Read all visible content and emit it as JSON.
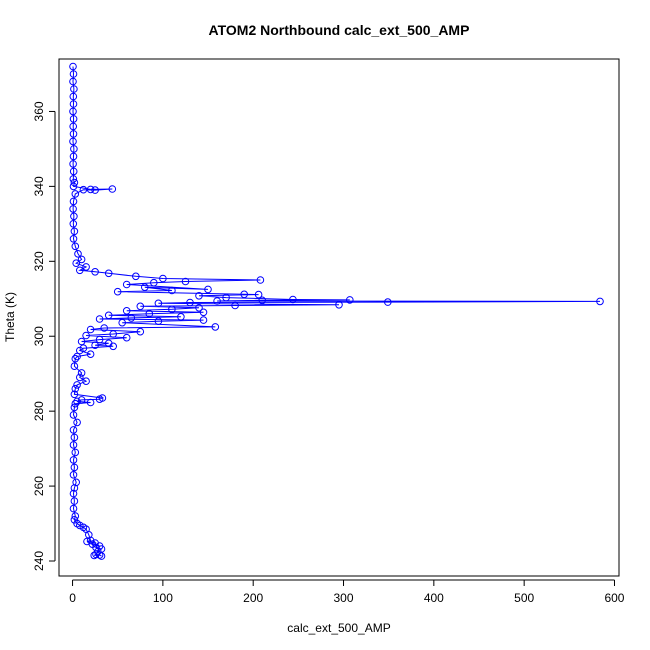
{
  "chart_data": {
    "type": "scatter",
    "title": "ATOM2 Northbound calc_ext_500_AMP",
    "xlabel": "calc_ext_500_AMP",
    "ylabel": "Theta (K)",
    "xlim": [
      -15,
      605
    ],
    "ylim": [
      236,
      374
    ],
    "x_ticks": [
      0,
      100,
      200,
      300,
      400,
      500,
      600
    ],
    "y_ticks": [
      240,
      260,
      280,
      300,
      320,
      340,
      360
    ],
    "grid": false,
    "legend": "none",
    "marker": "open-circle",
    "connect_points": true,
    "series": [
      {
        "color": "#0000ff",
        "points": [
          [
            0.5,
            372
          ],
          [
            1,
            370
          ],
          [
            0.5,
            368
          ],
          [
            1.5,
            366
          ],
          [
            0.8,
            364
          ],
          [
            1,
            362
          ],
          [
            0.5,
            360
          ],
          [
            1.2,
            358
          ],
          [
            0.7,
            356
          ],
          [
            1,
            354
          ],
          [
            0.5,
            352
          ],
          [
            1.5,
            350
          ],
          [
            1,
            348
          ],
          [
            0.6,
            346
          ],
          [
            1.3,
            344
          ],
          [
            0.8,
            342
          ],
          [
            2,
            341
          ],
          [
            1,
            340
          ],
          [
            20,
            339.2
          ],
          [
            44,
            339.3
          ],
          [
            25,
            339
          ],
          [
            12,
            339.1
          ],
          [
            3,
            338
          ],
          [
            1,
            336
          ],
          [
            0.6,
            334
          ],
          [
            1.5,
            332
          ],
          [
            0.8,
            330
          ],
          [
            2,
            328
          ],
          [
            1,
            326
          ],
          [
            3,
            324
          ],
          [
            6,
            322
          ],
          [
            10,
            320.5
          ],
          [
            4,
            319.5
          ],
          [
            15,
            318.5
          ],
          [
            8,
            317.6
          ],
          [
            25,
            317.2
          ],
          [
            40,
            316.8
          ],
          [
            70,
            316
          ],
          [
            100,
            315.4
          ],
          [
            208,
            315
          ],
          [
            125,
            314.6
          ],
          [
            90,
            314.3
          ],
          [
            60,
            313.8
          ],
          [
            150,
            312.5
          ],
          [
            80,
            313.1
          ],
          [
            110,
            312.2
          ],
          [
            50,
            311.9
          ],
          [
            190,
            311.2
          ],
          [
            206,
            311.1
          ],
          [
            140,
            310.8
          ],
          [
            170,
            310.3
          ],
          [
            244,
            309.8
          ],
          [
            307,
            309.7
          ],
          [
            210,
            309.6
          ],
          [
            160,
            309.4
          ],
          [
            584,
            309.3
          ],
          [
            349,
            309.1
          ],
          [
            130,
            309
          ],
          [
            95,
            308.8
          ],
          [
            295,
            308.4
          ],
          [
            180,
            308.2
          ],
          [
            75,
            308
          ],
          [
            140,
            307.6
          ],
          [
            110,
            307.2
          ],
          [
            60,
            306.8
          ],
          [
            145,
            306.4
          ],
          [
            85,
            306
          ],
          [
            40,
            305.6
          ],
          [
            120,
            305.2
          ],
          [
            65,
            304.9
          ],
          [
            30,
            304.6
          ],
          [
            145,
            304.3
          ],
          [
            95,
            304
          ],
          [
            55,
            303.6
          ],
          [
            158,
            302.5
          ],
          [
            35,
            302.2
          ],
          [
            20,
            301.8
          ],
          [
            75,
            301.2
          ],
          [
            45,
            300.6
          ],
          [
            15,
            300.2
          ],
          [
            60,
            299.6
          ],
          [
            30,
            299.1
          ],
          [
            10,
            298.6
          ],
          [
            40,
            298.1
          ],
          [
            25,
            297.6
          ],
          [
            45,
            297.3
          ],
          [
            12,
            296.8
          ],
          [
            8,
            296.2
          ],
          [
            20,
            295.2
          ],
          [
            5,
            294.6
          ],
          [
            3,
            294
          ],
          [
            2,
            292
          ],
          [
            10,
            290.2
          ],
          [
            8,
            289
          ],
          [
            15,
            288
          ],
          [
            5,
            287
          ],
          [
            3,
            286
          ],
          [
            2,
            284.5
          ],
          [
            33,
            283.5
          ],
          [
            30,
            283.2
          ],
          [
            10,
            283
          ],
          [
            5,
            282.6
          ],
          [
            20,
            282.3
          ],
          [
            3,
            282
          ],
          [
            2,
            281
          ],
          [
            1,
            279
          ],
          [
            5,
            277
          ],
          [
            1,
            275
          ],
          [
            2,
            273
          ],
          [
            1,
            271
          ],
          [
            3,
            269
          ],
          [
            1,
            267
          ],
          [
            2,
            265
          ],
          [
            1,
            263
          ],
          [
            4,
            261
          ],
          [
            2,
            259.5
          ],
          [
            1,
            258
          ],
          [
            2,
            256
          ],
          [
            1,
            254
          ],
          [
            3,
            252
          ],
          [
            2,
            251
          ],
          [
            5,
            250
          ],
          [
            8,
            249.5
          ],
          [
            12,
            249
          ],
          [
            15,
            248.5
          ],
          [
            18,
            247
          ],
          [
            20,
            245.5
          ],
          [
            16,
            245.2
          ],
          [
            25,
            244.8
          ],
          [
            22,
            244.5
          ],
          [
            30,
            244
          ],
          [
            26,
            243.6
          ],
          [
            32,
            243.2
          ],
          [
            28,
            242.5
          ],
          [
            26,
            241.8
          ],
          [
            24,
            241.5
          ],
          [
            30,
            241.6
          ],
          [
            32,
            241.3
          ]
        ]
      }
    ]
  }
}
